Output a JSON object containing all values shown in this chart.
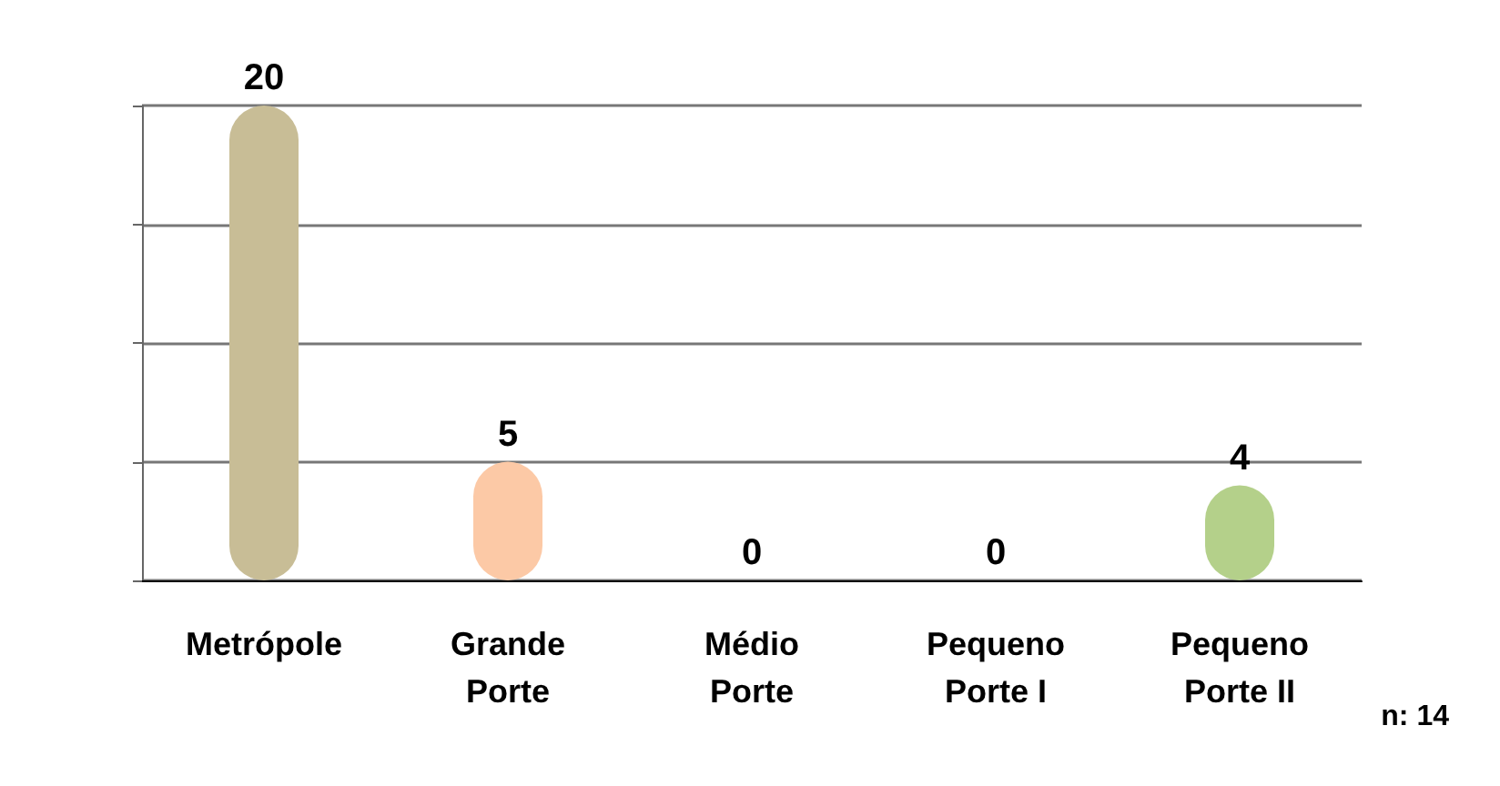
{
  "chart_data": {
    "type": "bar",
    "categories": [
      "Metrópole",
      "Grande\nPorte",
      "Médio\nPorte",
      "Pequeno\nPorte I",
      "Pequeno\nPorte II"
    ],
    "values": [
      20,
      5,
      0,
      0,
      4
    ],
    "colors": [
      "#c8bd96",
      "#fcc9a6",
      "#c00000",
      "#c8c800",
      "#b4d08a"
    ],
    "ylim": [
      0,
      20
    ],
    "yticks": [
      {
        "value": 0,
        "label": null
      },
      {
        "value": 5,
        "label": null
      },
      {
        "value": 10,
        "label": null
      },
      {
        "value": 15,
        "label": null
      },
      {
        "value": 20,
        "label": null
      }
    ],
    "grid": "y",
    "tick_labels": "x",
    "data_labels": true,
    "annotations": [
      "n: 14"
    ]
  }
}
